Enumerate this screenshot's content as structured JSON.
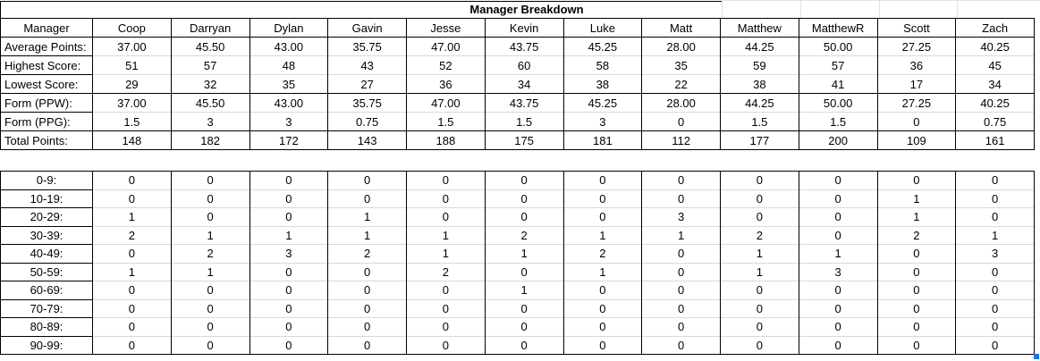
{
  "title": "Manager Breakdown",
  "colors": {
    "border": "#000000",
    "gridline": "#d9d9d9",
    "faint_gridline": "#e2e2e2",
    "text": "#000000",
    "background": "#ffffff",
    "selection_handle": "#1a73e8"
  },
  "top_table": {
    "corner_header": "Manager",
    "columns": [
      "Coop",
      "Darryan",
      "Dylan",
      "Gavin",
      "Jesse",
      "Kevin",
      "Luke",
      "Matt",
      "Matthew",
      "MatthewR",
      "Scott",
      "Zach"
    ],
    "rows": [
      {
        "label": "Average Points:",
        "values": [
          "37.00",
          "45.50",
          "43.00",
          "35.75",
          "47.00",
          "43.75",
          "45.25",
          "28.00",
          "44.25",
          "50.00",
          "27.25",
          "40.25"
        ]
      },
      {
        "label": "Highest Score:",
        "values": [
          "51",
          "57",
          "48",
          "43",
          "52",
          "60",
          "58",
          "35",
          "59",
          "57",
          "36",
          "45"
        ]
      },
      {
        "label": "Lowest Score:",
        "values": [
          "29",
          "32",
          "35",
          "27",
          "36",
          "34",
          "38",
          "22",
          "38",
          "41",
          "17",
          "34"
        ]
      },
      {
        "label": "Form (PPW):",
        "values": [
          "37.00",
          "45.50",
          "43.00",
          "35.75",
          "47.00",
          "43.75",
          "45.25",
          "28.00",
          "44.25",
          "50.00",
          "27.25",
          "40.25"
        ]
      },
      {
        "label": "Form (PPG):",
        "values": [
          "1.5",
          "3",
          "3",
          "0.75",
          "1.5",
          "1.5",
          "3",
          "0",
          "1.5",
          "1.5",
          "0",
          "0.75"
        ]
      },
      {
        "label": "Total Points:",
        "values": [
          "148",
          "182",
          "172",
          "143",
          "188",
          "175",
          "181",
          "112",
          "177",
          "200",
          "109",
          "161"
        ]
      }
    ]
  },
  "distribution_table": {
    "rows": [
      {
        "label": "0-9:",
        "values": [
          "0",
          "0",
          "0",
          "0",
          "0",
          "0",
          "0",
          "0",
          "0",
          "0",
          "0",
          "0"
        ]
      },
      {
        "label": "10-19:",
        "values": [
          "0",
          "0",
          "0",
          "0",
          "0",
          "0",
          "0",
          "0",
          "0",
          "0",
          "1",
          "0"
        ]
      },
      {
        "label": "20-29:",
        "values": [
          "1",
          "0",
          "0",
          "1",
          "0",
          "0",
          "0",
          "3",
          "0",
          "0",
          "1",
          "0"
        ]
      },
      {
        "label": "30-39:",
        "values": [
          "2",
          "1",
          "1",
          "1",
          "1",
          "2",
          "1",
          "1",
          "2",
          "0",
          "2",
          "1"
        ]
      },
      {
        "label": "40-49:",
        "values": [
          "0",
          "2",
          "3",
          "2",
          "1",
          "1",
          "2",
          "0",
          "1",
          "1",
          "0",
          "3"
        ]
      },
      {
        "label": "50-59:",
        "values": [
          "1",
          "1",
          "0",
          "0",
          "2",
          "0",
          "1",
          "0",
          "1",
          "3",
          "0",
          "0"
        ]
      },
      {
        "label": "60-69:",
        "values": [
          "0",
          "0",
          "0",
          "0",
          "0",
          "1",
          "0",
          "0",
          "0",
          "0",
          "0",
          "0"
        ]
      },
      {
        "label": "70-79:",
        "values": [
          "0",
          "0",
          "0",
          "0",
          "0",
          "0",
          "0",
          "0",
          "0",
          "0",
          "0",
          "0"
        ]
      },
      {
        "label": "80-89:",
        "values": [
          "0",
          "0",
          "0",
          "0",
          "0",
          "0",
          "0",
          "0",
          "0",
          "0",
          "0",
          "0"
        ]
      },
      {
        "label": "90-99:",
        "values": [
          "0",
          "0",
          "0",
          "0",
          "0",
          "0",
          "0",
          "0",
          "0",
          "0",
          "0",
          "0"
        ]
      }
    ]
  }
}
